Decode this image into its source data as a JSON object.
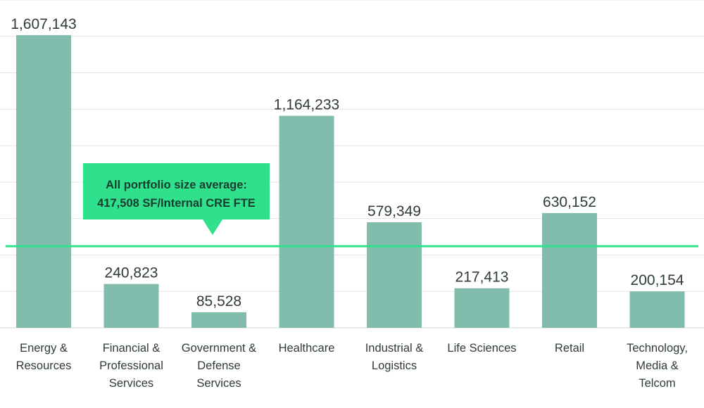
{
  "chart_data": {
    "type": "bar",
    "categories": [
      [
        "Energy &",
        "Resources"
      ],
      [
        "Financial &",
        "Professional",
        "Services"
      ],
      [
        "Government &",
        "Defense",
        "Services"
      ],
      [
        "Healthcare"
      ],
      [
        "Industrial &",
        "Logistics"
      ],
      [
        "Life Sciences"
      ],
      [
        "Retail"
      ],
      [
        "Technology,",
        "Media &",
        "Telcom"
      ]
    ],
    "values": [
      1607143,
      240823,
      85528,
      1164233,
      579349,
      217413,
      630152,
      200154
    ],
    "value_labels": [
      "1,607,143",
      "240,823",
      "85,528",
      "1,164,233",
      "579,349",
      "217,413",
      "630,152",
      "200,154"
    ],
    "reference_line": {
      "value": 417508,
      "label_lines": [
        "All portfolio size average:",
        "417,508 SF/Internal CRE FTE"
      ]
    },
    "ylim": [
      0,
      1800000
    ],
    "grid": true,
    "legend": "none",
    "colors": {
      "bar": "#82bcad",
      "reference": "#2fe08c",
      "gridline": "#e3e3e3",
      "text": "#2f3b3a",
      "callout_text": "#173d2f"
    }
  }
}
